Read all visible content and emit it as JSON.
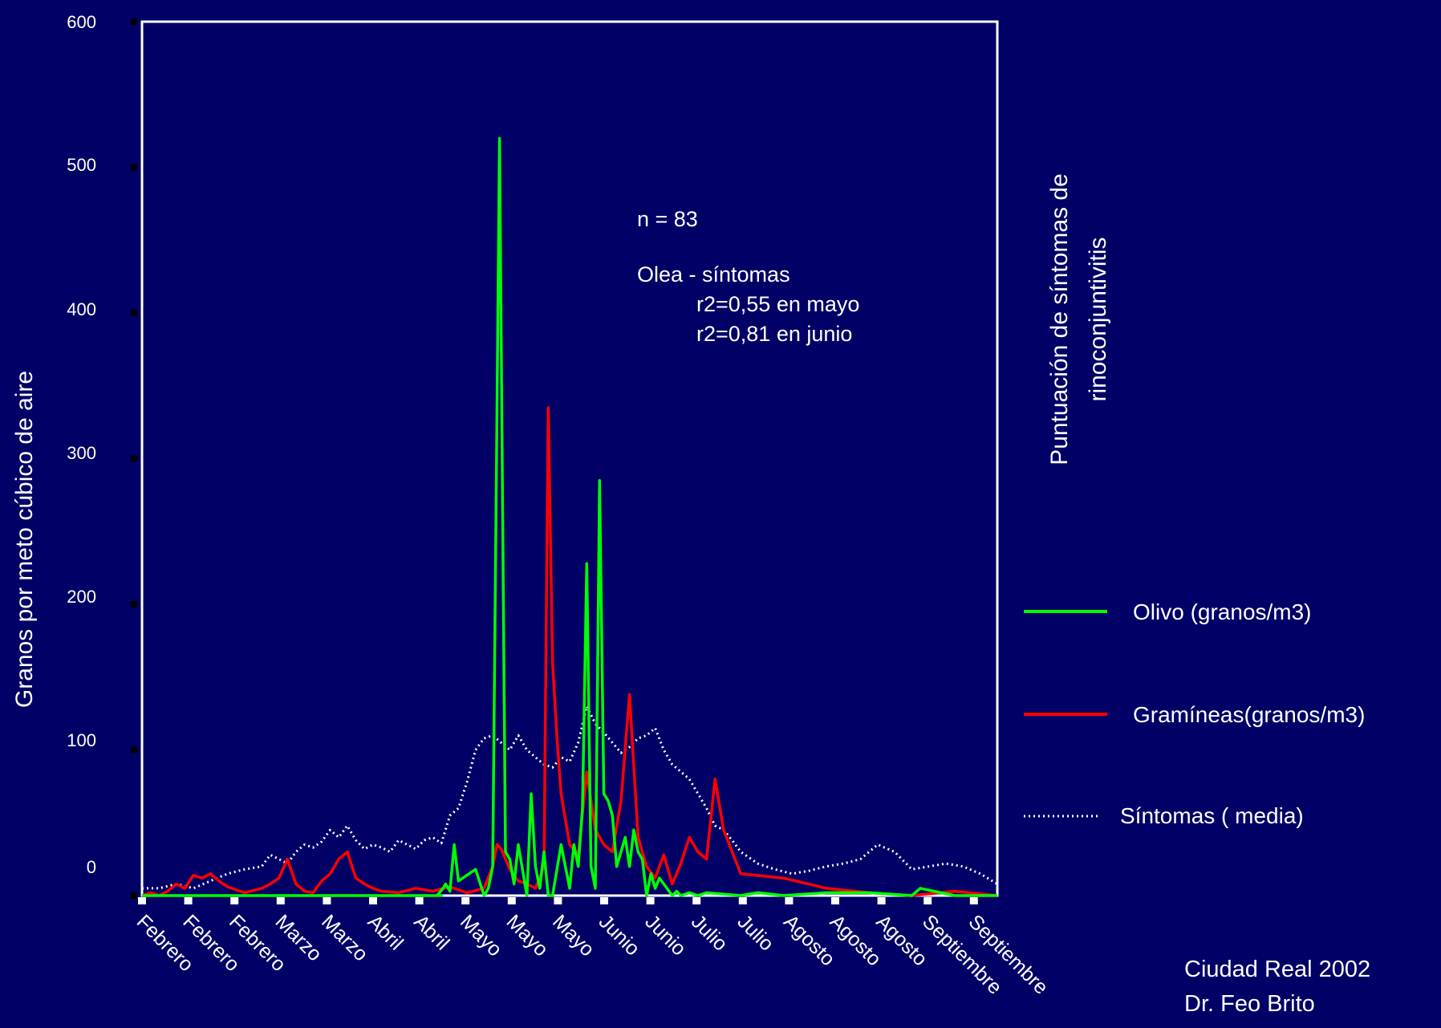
{
  "chart_data": {
    "type": "line",
    "ylabel": "Granos por meto cúbico de aire",
    "y2label_line1": "Puntuación de síntomas de",
    "y2label_line2": "rinoconjuntivitis",
    "ylim": [
      0,
      600
    ],
    "yticks": [
      0,
      100,
      200,
      300,
      400,
      500,
      600
    ],
    "x_tick_labels": [
      "Febrero",
      "Febrero",
      "Febrero",
      "Marzo",
      "Marzo",
      "Abril",
      "Abril",
      "Mayo",
      "Mayo",
      "Mayo",
      "Junio",
      "Junio",
      "Julio",
      "Julio",
      "Agosto",
      "Agosto",
      "Agosto",
      "Septiembre",
      "Septiembre"
    ],
    "x_range": [
      0,
      1
    ],
    "annotations": [
      "n = 83",
      "Olea - síntomas",
      "r2=0,55 en mayo",
      "r2=0,81 en junio"
    ],
    "legend_position": "right",
    "colors": {
      "background": "#000066",
      "olivo": "#00ff00",
      "gramineas": "#ff0000",
      "sintomas": "#ffffff"
    },
    "series": [
      {
        "name": "Olivo (granos/m3)",
        "x": [
          0.0,
          0.35,
          0.345,
          0.352,
          0.355,
          0.36,
          0.365,
          0.37,
          0.39,
          0.4,
          0.405,
          0.41,
          0.418,
          0.425,
          0.43,
          0.435,
          0.44,
          0.45,
          0.455,
          0.46,
          0.465,
          0.47,
          0.475,
          0.48,
          0.49,
          0.5,
          0.505,
          0.51,
          0.515,
          0.52,
          0.525,
          0.53,
          0.535,
          0.54,
          0.545,
          0.55,
          0.555,
          0.56,
          0.565,
          0.57,
          0.575,
          0.58,
          0.585,
          0.59,
          0.595,
          0.6,
          0.605,
          0.61,
          0.62,
          0.625,
          0.63,
          0.64,
          0.65,
          0.66,
          0.7,
          0.72,
          0.75,
          0.8,
          0.85,
          0.9,
          0.91,
          0.95,
          1.0
        ],
        "y": [
          0,
          0,
          0,
          5,
          8,
          3,
          35,
          10,
          18,
          0,
          5,
          20,
          520,
          30,
          25,
          8,
          35,
          0,
          70,
          20,
          5,
          30,
          0,
          0,
          35,
          5,
          35,
          20,
          60,
          228,
          20,
          5,
          285,
          70,
          65,
          55,
          20,
          30,
          40,
          20,
          45,
          30,
          25,
          0,
          15,
          5,
          12,
          8,
          0,
          3,
          0,
          2,
          0,
          2,
          0,
          2,
          0,
          2,
          2,
          0,
          5,
          0,
          0
        ]
      },
      {
        "name": "Gramíneas(granos/m3)",
        "x": [
          0.0,
          0.01,
          0.02,
          0.03,
          0.04,
          0.05,
          0.06,
          0.07,
          0.08,
          0.09,
          0.1,
          0.12,
          0.14,
          0.15,
          0.16,
          0.17,
          0.18,
          0.19,
          0.2,
          0.21,
          0.22,
          0.23,
          0.24,
          0.25,
          0.26,
          0.27,
          0.28,
          0.3,
          0.32,
          0.34,
          0.36,
          0.38,
          0.4,
          0.41,
          0.415,
          0.42,
          0.43,
          0.44,
          0.45,
          0.46,
          0.47,
          0.475,
          0.48,
          0.485,
          0.49,
          0.5,
          0.51,
          0.52,
          0.53,
          0.54,
          0.55,
          0.56,
          0.57,
          0.58,
          0.59,
          0.6,
          0.61,
          0.62,
          0.63,
          0.64,
          0.65,
          0.66,
          0.67,
          0.68,
          0.7,
          0.75,
          0.8,
          0.85,
          0.9,
          0.95,
          1.0
        ],
        "y": [
          0,
          2,
          0,
          3,
          8,
          5,
          14,
          12,
          15,
          10,
          6,
          2,
          5,
          8,
          12,
          25,
          8,
          3,
          2,
          10,
          15,
          25,
          30,
          12,
          8,
          5,
          3,
          2,
          5,
          3,
          6,
          2,
          5,
          20,
          35,
          32,
          18,
          10,
          8,
          5,
          20,
          335,
          160,
          110,
          70,
          35,
          28,
          85,
          45,
          35,
          30,
          65,
          138,
          40,
          20,
          12,
          28,
          8,
          22,
          40,
          30,
          25,
          80,
          45,
          15,
          12,
          5,
          2,
          0,
          3,
          0
        ]
      },
      {
        "name": "Síntomas ( media)",
        "x": [
          0.0,
          0.02,
          0.04,
          0.06,
          0.08,
          0.1,
          0.12,
          0.14,
          0.15,
          0.16,
          0.17,
          0.18,
          0.19,
          0.2,
          0.21,
          0.22,
          0.23,
          0.24,
          0.25,
          0.26,
          0.27,
          0.28,
          0.29,
          0.3,
          0.31,
          0.32,
          0.33,
          0.34,
          0.35,
          0.36,
          0.37,
          0.38,
          0.39,
          0.4,
          0.41,
          0.42,
          0.43,
          0.44,
          0.45,
          0.46,
          0.47,
          0.48,
          0.49,
          0.5,
          0.51,
          0.52,
          0.53,
          0.54,
          0.55,
          0.56,
          0.57,
          0.58,
          0.59,
          0.6,
          0.61,
          0.62,
          0.63,
          0.64,
          0.65,
          0.66,
          0.67,
          0.68,
          0.69,
          0.7,
          0.72,
          0.74,
          0.76,
          0.78,
          0.8,
          0.82,
          0.84,
          0.86,
          0.88,
          0.9,
          0.92,
          0.94,
          0.96,
          0.98,
          1.0
        ],
        "y": [
          5,
          5,
          8,
          5,
          10,
          15,
          18,
          20,
          28,
          25,
          22,
          30,
          35,
          33,
          37,
          45,
          40,
          48,
          38,
          32,
          35,
          33,
          30,
          38,
          35,
          32,
          38,
          40,
          36,
          55,
          60,
          78,
          100,
          108,
          110,
          105,
          100,
          110,
          100,
          95,
          90,
          88,
          95,
          92,
          105,
          130,
          118,
          112,
          105,
          98,
          102,
          108,
          110,
          115,
          100,
          90,
          85,
          80,
          70,
          60,
          48,
          45,
          38,
          30,
          22,
          18,
          15,
          17,
          20,
          22,
          25,
          35,
          30,
          18,
          20,
          22,
          20,
          15,
          8
        ]
      }
    ]
  },
  "legend": [
    {
      "label": "Olivo (granos/m3)",
      "style": "solid",
      "color": "#00ff00"
    },
    {
      "label": "Gramíneas(granos/m3)",
      "style": "solid",
      "color": "#ff0000"
    },
    {
      "label": "Síntomas ( media)",
      "style": "dotted",
      "color": "#ffffff"
    }
  ],
  "credit": {
    "line1": "Ciudad Real 2002",
    "line2": "Dr. Feo Brito"
  }
}
